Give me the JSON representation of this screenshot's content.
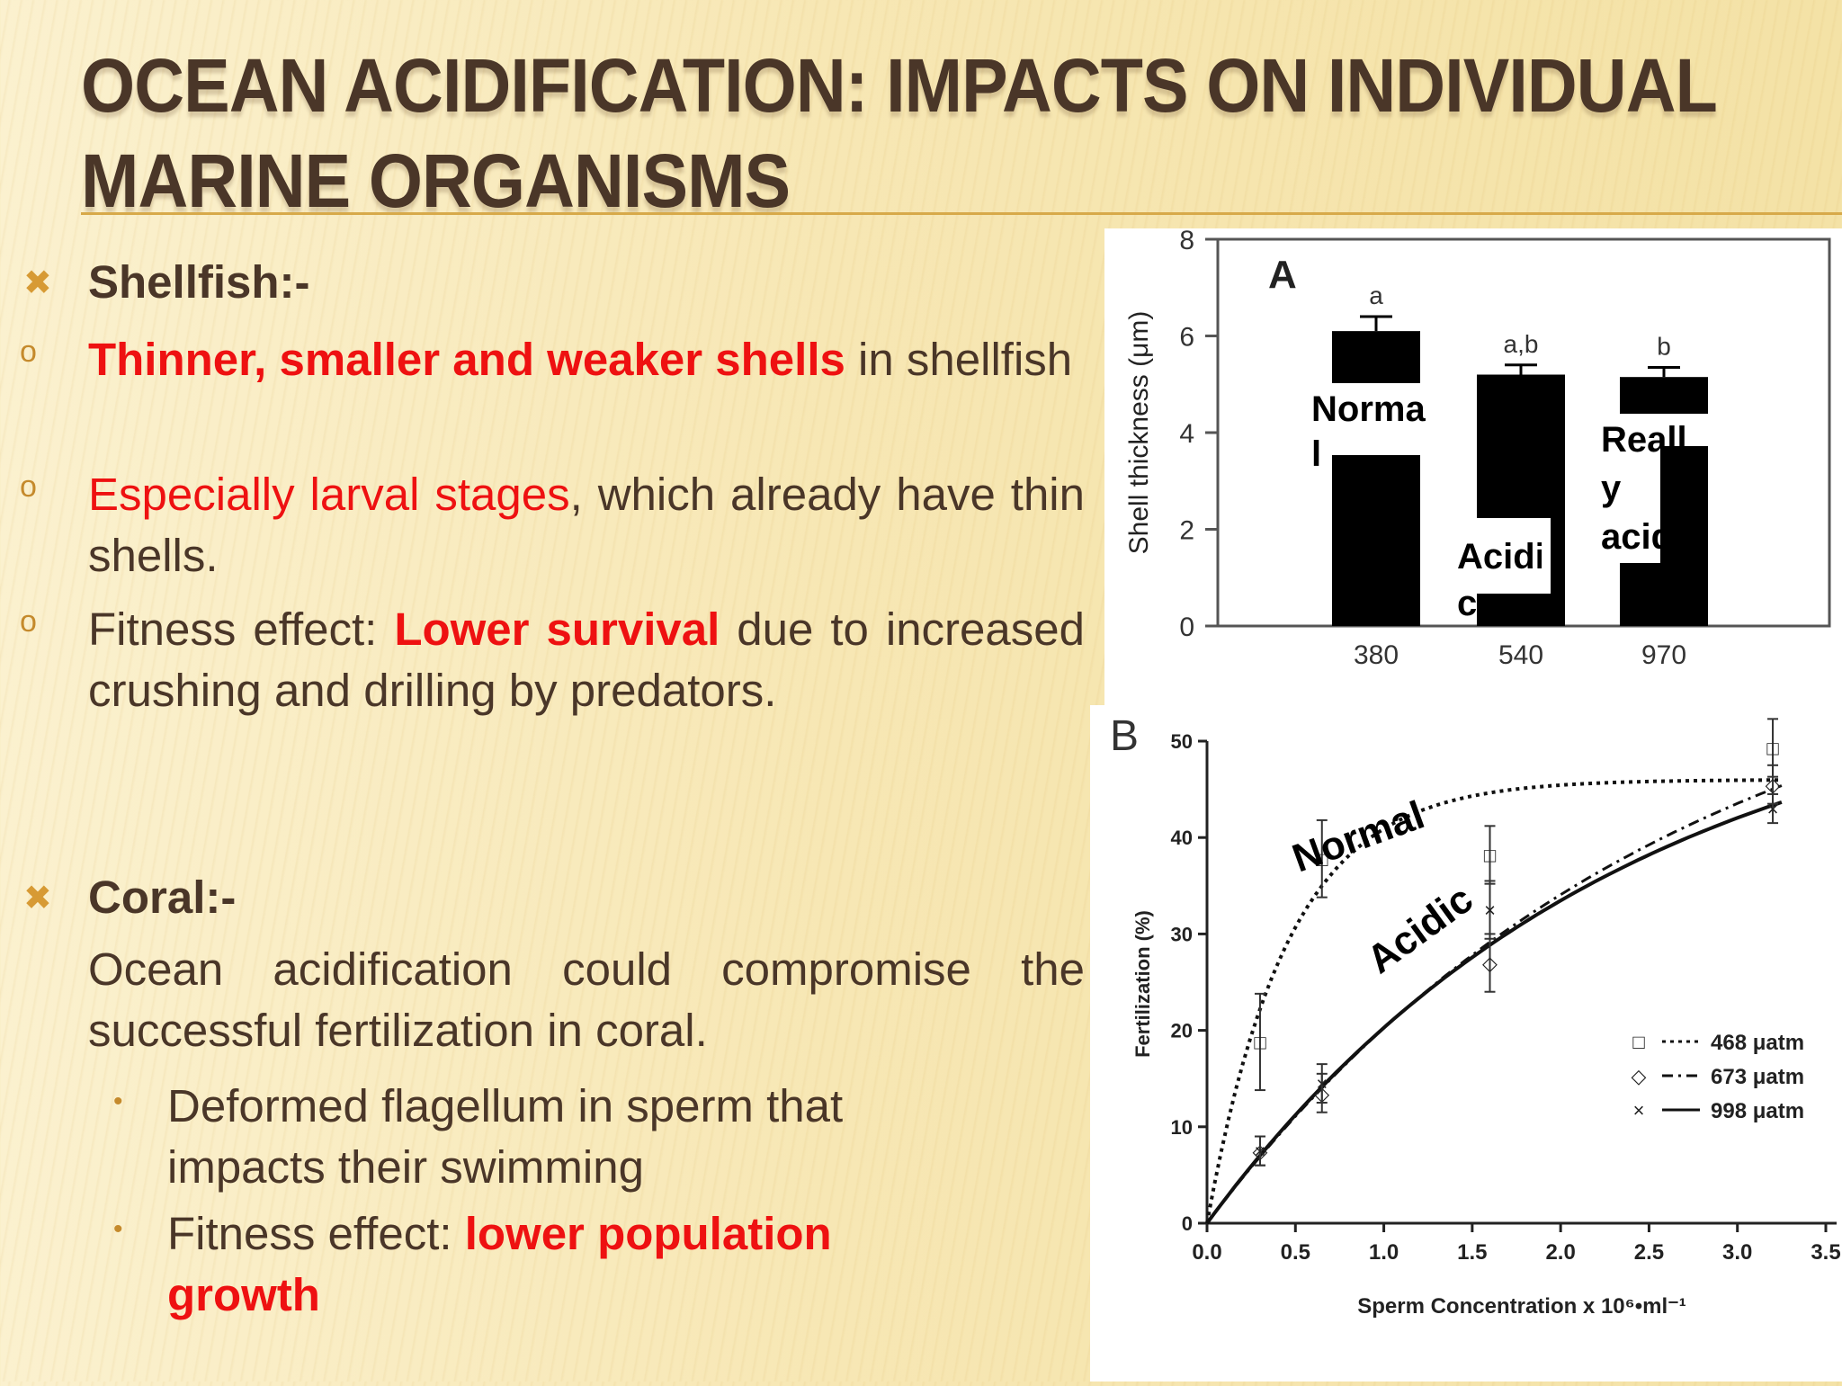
{
  "title": {
    "line1": "OCEAN ACIDIFICATION: IMPACTS ON INDIVIDUAL",
    "line2": "MARINE ORGANISMS"
  },
  "left": {
    "shellfish_heading": "Shellfish:-",
    "b1_red": "Thinner, smaller and weaker shells",
    "b1_rest": " in shellfish",
    "b2_red": "Especially larval stages",
    "b2_rest": ", which already have thin shells.",
    "b3_a": "Fitness effect: ",
    "b3_red": "Lower survival",
    "b3_rest": " due to increased crushing and drilling by predators.",
    "coral_heading": "Coral:-",
    "coral_text": "Ocean acidification could compromise the successful fertilization in coral.",
    "sub1": "Deformed flagellum in sperm that impacts their swimming",
    "sub2_a": " Fitness effect: ",
    "sub2_red": "lower population growth"
  },
  "chart_data": [
    {
      "type": "bar",
      "panel_label": "A",
      "ylabel": "Shell thickness (μm)",
      "xlabel": "",
      "categories": [
        "380",
        "540",
        "970"
      ],
      "values": [
        6.1,
        5.2,
        5.15
      ],
      "errors": [
        0.3,
        0.2,
        0.2
      ],
      "letters": [
        "a",
        "a,b",
        "b"
      ],
      "yticks": [
        0,
        2,
        4,
        6,
        8
      ],
      "ylim": [
        0,
        8
      ],
      "overlay_labels": [
        "Norma\nl",
        "Acidi\nc",
        "Reall\ny\nacidic"
      ]
    },
    {
      "type": "line",
      "panel_label": "B",
      "xlabel": "Sperm Concentration x 10⁶•ml⁻¹",
      "ylabel": "Fertilization (%)",
      "xlim": [
        0,
        3.5
      ],
      "ylim": [
        0,
        50
      ],
      "xticks": [
        "0.0",
        "0.5",
        "1.0",
        "1.5",
        "2.0",
        "2.5",
        "3.0",
        "3.5"
      ],
      "yticks": [
        "0",
        "10",
        "20",
        "30",
        "40",
        "50"
      ],
      "series": [
        {
          "name": "468 μatm",
          "marker": "□",
          "x": [
            0.3,
            0.65,
            1.6,
            3.2
          ],
          "y": [
            18.8,
            37.8,
            38.2,
            49.3
          ],
          "err": [
            5,
            4,
            3,
            3
          ]
        },
        {
          "name": "673 μatm",
          "marker": "◇",
          "x": [
            0.3,
            0.65,
            1.6,
            3.2
          ],
          "y": [
            7.5,
            13.5,
            27,
            45.5
          ],
          "err": [
            1.5,
            2,
            3,
            2
          ]
        },
        {
          "name": "998 μatm",
          "marker": "×",
          "x": [
            0.3,
            0.65,
            1.6,
            3.2
          ],
          "y": [
            7.5,
            14.5,
            32.5,
            43
          ],
          "err": [
            1.5,
            2,
            3,
            1.5
          ]
        }
      ],
      "annotations": [
        "Normal",
        "Acidic"
      ]
    }
  ]
}
